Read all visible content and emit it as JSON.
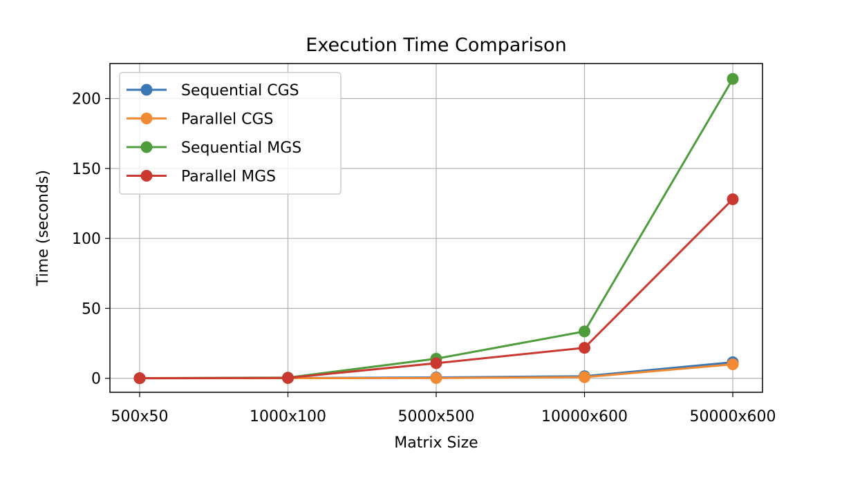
{
  "chart_data": {
    "type": "line",
    "title": "Execution Time Comparison",
    "xlabel": "Matrix Size",
    "ylabel": "Time (seconds)",
    "categories": [
      "500x50",
      "1000x100",
      "5000x500",
      "10000x600",
      "50000x600"
    ],
    "ylim": [
      -10,
      225
    ],
    "yticks": [
      0,
      50,
      100,
      150,
      200
    ],
    "grid": true,
    "legend_position": "top-left",
    "series": [
      {
        "name": "Sequential CGS",
        "color": "#3a77b4",
        "values": [
          0.05,
          0.2,
          0.6,
          1.5,
          11.5
        ]
      },
      {
        "name": "Parallel CGS",
        "color": "#f28a33",
        "values": [
          0.03,
          0.1,
          0.2,
          0.8,
          10.0
        ]
      },
      {
        "name": "Sequential MGS",
        "color": "#4e9c3c",
        "values": [
          0.1,
          0.5,
          14.0,
          33.5,
          214.0
        ]
      },
      {
        "name": "Parallel MGS",
        "color": "#c9392f",
        "values": [
          0.08,
          0.3,
          10.8,
          21.8,
          128.0
        ]
      }
    ]
  }
}
